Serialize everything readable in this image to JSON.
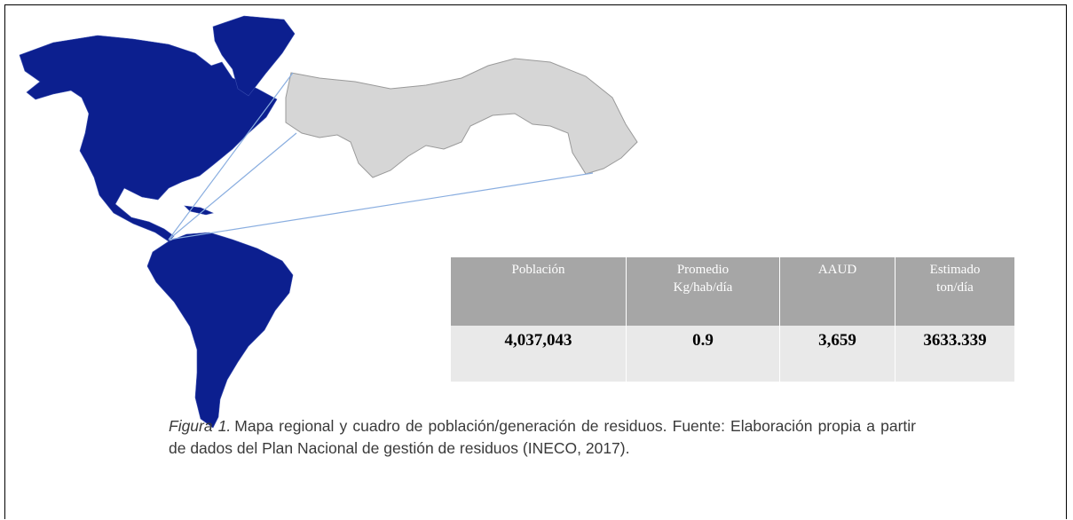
{
  "table": {
    "headers": [
      [
        "Población"
      ],
      [
        "Promedio",
        "Kg/hab/día"
      ],
      [
        "AAUD"
      ],
      [
        "Estimado",
        "ton/día"
      ]
    ],
    "rows": [
      [
        "4,037,043",
        "0.9",
        "3,659",
        "3633.339"
      ]
    ]
  },
  "caption": {
    "label": "Figura  1.",
    "text": "Mapa regional y cuadro de población/generación de residuos. Fuente: Elaboración propia a partir de dados del Plan Nacional de gestión de residuos (INECO, 2017)."
  }
}
